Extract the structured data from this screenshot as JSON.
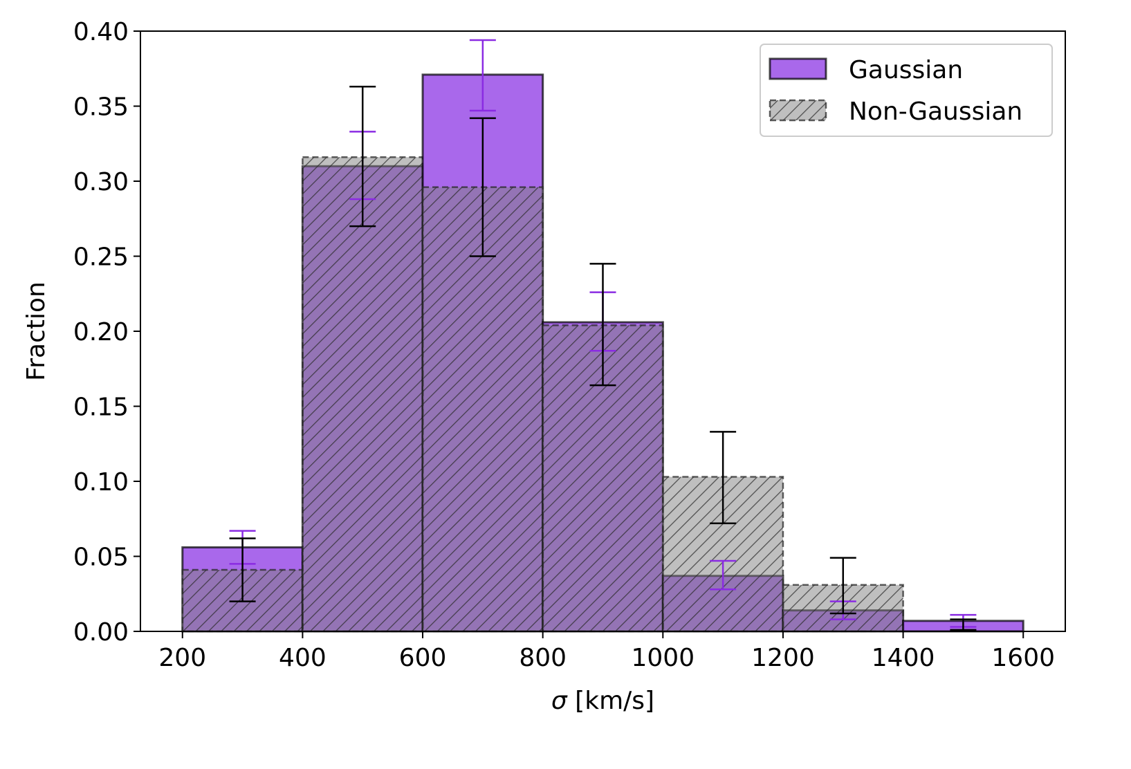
{
  "chart_data": {
    "type": "bar",
    "xlabel_symbol": "σ",
    "xlabel_unit": " [km/s]",
    "ylabel": "Fraction",
    "xlim": [
      130,
      1670
    ],
    "ylim": [
      0,
      0.4
    ],
    "bin_edges": [
      200,
      400,
      600,
      800,
      1000,
      1200,
      1400,
      1600
    ],
    "xticks": [
      200,
      400,
      600,
      800,
      1000,
      1200,
      1400,
      1600
    ],
    "xtick_labels": [
      "200",
      "400",
      "600",
      "800",
      "1000",
      "1200",
      "1400",
      "1600"
    ],
    "yticks": [
      0.0,
      0.05,
      0.1,
      0.15,
      0.2,
      0.25,
      0.3,
      0.35,
      0.4
    ],
    "ytick_labels": [
      "0.00",
      "0.05",
      "0.10",
      "0.15",
      "0.20",
      "0.25",
      "0.30",
      "0.35",
      "0.40"
    ],
    "legend_position": "top-right",
    "grid": false,
    "series": [
      {
        "name": "Gaussian",
        "color": "#9a4de8",
        "style": "solid",
        "values": [
          0.056,
          0.31,
          0.371,
          0.206,
          0.037,
          0.014,
          0.007
        ],
        "err_centers": [
          300,
          500,
          700,
          900,
          1100,
          1300,
          1500
        ],
        "err_low": [
          0.045,
          0.288,
          0.347,
          0.187,
          0.028,
          0.008,
          0.003
        ],
        "err_high": [
          0.067,
          0.333,
          0.394,
          0.226,
          0.047,
          0.02,
          0.011
        ],
        "err_color": "#8a2be2"
      },
      {
        "name": "Non-Gaussian",
        "color": "#808080",
        "style": "hatched-dashed",
        "values": [
          0.041,
          0.316,
          0.296,
          0.204,
          0.103,
          0.031,
          0.0
        ],
        "err_centers": [
          300,
          500,
          700,
          900,
          1100,
          1300,
          1500
        ],
        "err_low": [
          0.02,
          0.27,
          0.25,
          0.164,
          0.072,
          0.012,
          0.001
        ],
        "err_high": [
          0.062,
          0.363,
          0.342,
          0.245,
          0.133,
          0.049,
          0.008
        ],
        "err_color": "#000000"
      }
    ]
  }
}
